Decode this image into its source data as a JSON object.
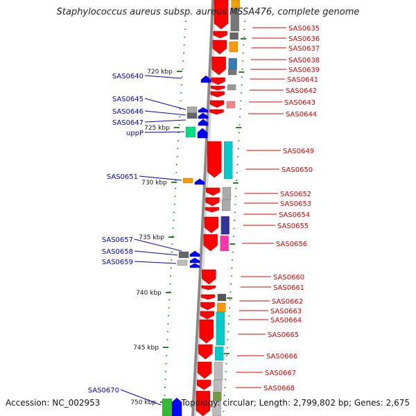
{
  "header": {
    "title": "Staphylococcus aureus subsp. aureus MSSA476, complete genome"
  },
  "footer": {
    "accession": "Accession: NC_002953",
    "info": "Topology: circular; Length: 2,799,802 bp; Genes: 2,675"
  },
  "colors": {
    "forward_gene": "#ff0000",
    "reverse_gene": "#0000ff",
    "forward_label": "#dd0000",
    "reverse_label": "#0000cc",
    "backbone": "#8a8a8a",
    "tick": "#228822"
  },
  "scale": {
    "ticks": [
      {
        "label": "720 kbp"
      },
      {
        "label": "725 kbp"
      },
      {
        "label": "730 kbp"
      },
      {
        "label": "735 kbp"
      },
      {
        "label": "740 kbp"
      },
      {
        "label": "745 kbp"
      },
      {
        "label": "750 kbp"
      }
    ]
  },
  "reverse_genes": [
    {
      "label": "SAS0640"
    },
    {
      "label": "SAS0645"
    },
    {
      "label": "SAS0646"
    },
    {
      "label": "SAS0647"
    },
    {
      "label": "uppP"
    },
    {
      "label": "SAS0651"
    },
    {
      "label": "SAS0657"
    },
    {
      "label": "SAS0658"
    },
    {
      "label": "SAS0659"
    },
    {
      "label": "SAS0670"
    }
  ],
  "forward_genes": [
    {
      "label": "SAS0635"
    },
    {
      "label": "SAS0636"
    },
    {
      "label": "SAS0637"
    },
    {
      "label": "SAS0638"
    },
    {
      "label": "SAS0639"
    },
    {
      "label": "SAS0641"
    },
    {
      "label": "SAS0642"
    },
    {
      "label": "SAS0643"
    },
    {
      "label": "SAS0644"
    },
    {
      "label": "SAS0649"
    },
    {
      "label": "SAS0650"
    },
    {
      "label": "SAS0652"
    },
    {
      "label": "SAS0653"
    },
    {
      "label": "SAS0654"
    },
    {
      "label": "SAS0655"
    },
    {
      "label": "SAS0656"
    },
    {
      "label": "SAS0660"
    },
    {
      "label": "SAS0661"
    },
    {
      "label": "SAS0662"
    },
    {
      "label": "SAS0663"
    },
    {
      "label": "SAS0664"
    },
    {
      "label": "SAS0665"
    },
    {
      "label": "SAS0666"
    },
    {
      "label": "SAS0667"
    },
    {
      "label": "SAS0668"
    }
  ]
}
